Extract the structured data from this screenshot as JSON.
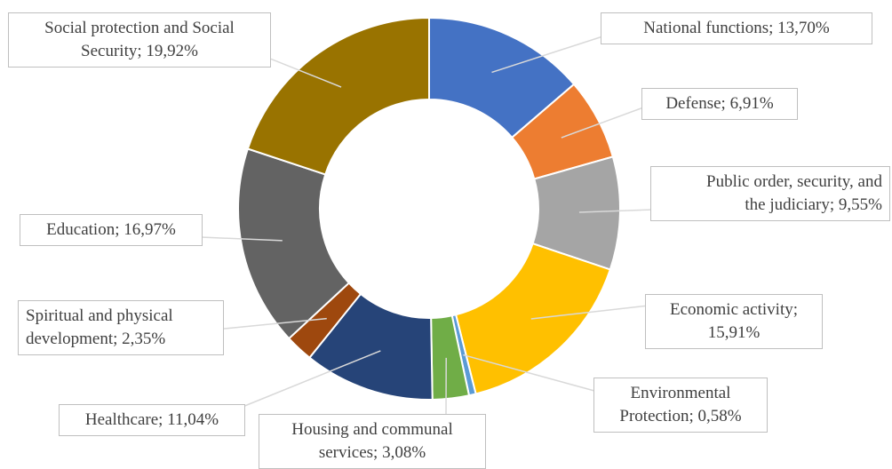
{
  "chart_data": {
    "type": "pie",
    "variant": "donut",
    "legend": "none",
    "slices": [
      {
        "label": "National functions",
        "value": 13.7,
        "text": "National functions; 13,70%",
        "color": "#4472C4"
      },
      {
        "label": "Defense",
        "value": 6.91,
        "text": "Defense; 6,91%",
        "color": "#ED7D31"
      },
      {
        "label": "Public order, security, and the judiciary",
        "value": 9.55,
        "text": "Public order, security, and the judiciary; 9,55%",
        "color": "#A5A5A5"
      },
      {
        "label": "Economic activity",
        "value": 15.91,
        "text": "Economic activity; 15,91%",
        "color": "#FFC000"
      },
      {
        "label": "Environmental Protection",
        "value": 0.58,
        "text": "Environmental Protection; 0,58%",
        "color": "#5B9BD5"
      },
      {
        "label": "Housing and communal services",
        "value": 3.08,
        "text": "Housing and communal services; 3,08%",
        "color": "#70AD47"
      },
      {
        "label": "Healthcare",
        "value": 11.04,
        "text": "Healthcare; 11,04%",
        "color": "#264478"
      },
      {
        "label": "Spiritual and physical development",
        "value": 2.35,
        "text": "Spiritual and physical development; 2,35%",
        "color": "#9E480E"
      },
      {
        "label": "Education",
        "value": 16.97,
        "text": "Education; 16,97%",
        "color": "#636363"
      },
      {
        "label": "Social protection and Social Security",
        "value": 19.92,
        "text": "Social protection and Social Security; 19,92%",
        "color": "#997300"
      }
    ]
  },
  "labels": {
    "national_functions": [
      "National functions; 13,70%"
    ],
    "defense": [
      "Defense; 6,91%"
    ],
    "public_order": [
      "Public order, security, and",
      "the judiciary; 9,55%"
    ],
    "economic_activity": [
      "Economic activity;",
      "15,91%"
    ],
    "environmental_protection": [
      "Environmental",
      "Protection; 0,58%"
    ],
    "housing": [
      "Housing and communal",
      "services; 3,08%"
    ],
    "healthcare": [
      "Healthcare;  11,04%"
    ],
    "spiritual": [
      "Spiritual and physical",
      "development; 2,35%"
    ],
    "education": [
      "Education; 16,97%"
    ],
    "social_protection": [
      "Social protection and Social",
      "Security; 19,92%"
    ]
  }
}
